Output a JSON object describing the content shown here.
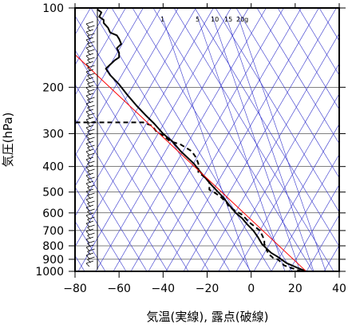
{
  "chart_data": {
    "type": "line",
    "title": "",
    "xlabel": "気温(実線), 露点(破線)",
    "ylabel": "気圧(hPa)",
    "xlim": [
      -80,
      40
    ],
    "ylim_hpa": [
      1000,
      100
    ],
    "y_scale": "log",
    "x_ticks": [
      -80,
      -60,
      -40,
      -20,
      0,
      20,
      40
    ],
    "y_ticks": [
      100,
      200,
      300,
      400,
      500,
      600,
      700,
      800,
      900,
      1000
    ],
    "x_tick_labels": [
      "−80",
      "−60",
      "−40",
      "−20",
      "0",
      "20",
      "40"
    ],
    "y_tick_labels": [
      "100",
      "200",
      "300",
      "400",
      "500",
      "600",
      "700",
      "800",
      "900",
      "1000"
    ],
    "mixing_ratio_labels": [
      "1",
      "5",
      "10",
      "15",
      "20g"
    ],
    "grid": true,
    "colors": {
      "temperature": "#000000",
      "dewpoint": "#000000",
      "reference": "#ff0000",
      "grid_lines": "#3333cc",
      "frame": "#000000"
    },
    "series": [
      {
        "role": "temperature",
        "style": "solid",
        "points": [
          [
            25,
            1000
          ],
          [
            21,
            970
          ],
          [
            16,
            930
          ],
          [
            12,
            880
          ],
          [
            9,
            850
          ],
          [
            5,
            790
          ],
          [
            3,
            740
          ],
          [
            1,
            700
          ],
          [
            -2,
            660
          ],
          [
            -4,
            630
          ],
          [
            -7,
            600
          ],
          [
            -10,
            560
          ],
          [
            -13,
            520
          ],
          [
            -15,
            500
          ],
          [
            -18,
            470
          ],
          [
            -23,
            420
          ],
          [
            -26,
            390
          ],
          [
            -32,
            350
          ],
          [
            -36,
            320
          ],
          [
            -40,
            300
          ],
          [
            -44,
            275
          ],
          [
            -48,
            255
          ],
          [
            -52,
            235
          ],
          [
            -56,
            215
          ],
          [
            -60,
            195
          ],
          [
            -64,
            180
          ],
          [
            -66,
            170
          ],
          [
            -64,
            164
          ],
          [
            -62,
            158
          ],
          [
            -60,
            154
          ],
          [
            -60,
            148
          ],
          [
            -61,
            142
          ],
          [
            -59,
            137
          ],
          [
            -60,
            131
          ],
          [
            -61,
            127
          ],
          [
            -64,
            124
          ],
          [
            -65,
            119
          ],
          [
            -67,
            114
          ],
          [
            -67,
            111
          ],
          [
            -69,
            108
          ],
          [
            -68,
            104
          ],
          [
            -70,
            101
          ]
        ]
      },
      {
        "role": "dewpoint",
        "style": "dashed",
        "points": [
          [
            23,
            1000
          ],
          [
            18,
            970
          ],
          [
            15,
            950
          ],
          [
            14,
            930
          ],
          [
            12,
            900
          ],
          [
            10,
            890
          ],
          [
            8,
            860
          ],
          [
            7,
            830
          ],
          [
            7,
            810
          ],
          [
            6,
            790
          ],
          [
            6,
            760
          ],
          [
            5,
            730
          ],
          [
            4,
            700
          ],
          [
            2,
            680
          ],
          [
            -1,
            650
          ],
          [
            -4,
            610
          ],
          [
            -7,
            590
          ],
          [
            -10,
            570
          ],
          [
            -11,
            550
          ],
          [
            -14,
            520
          ],
          [
            -17,
            500
          ],
          [
            -19,
            490
          ],
          [
            -19,
            460
          ],
          [
            -21,
            440
          ],
          [
            -24,
            420
          ],
          [
            -24,
            390
          ],
          [
            -25,
            370
          ],
          [
            -27,
            350
          ],
          [
            -32,
            330
          ],
          [
            -37,
            320
          ],
          [
            -40,
            305
          ],
          [
            -43,
            295
          ],
          [
            -45,
            280
          ],
          [
            -49,
            272
          ],
          [
            -57,
            272
          ],
          [
            -64,
            272
          ],
          [
            -70,
            272
          ],
          [
            -75,
            272
          ],
          [
            -80,
            272
          ]
        ]
      },
      {
        "role": "reference",
        "style": "solid",
        "points": [
          [
            25,
            1000
          ],
          [
            -82,
            145
          ]
        ]
      }
    ]
  }
}
